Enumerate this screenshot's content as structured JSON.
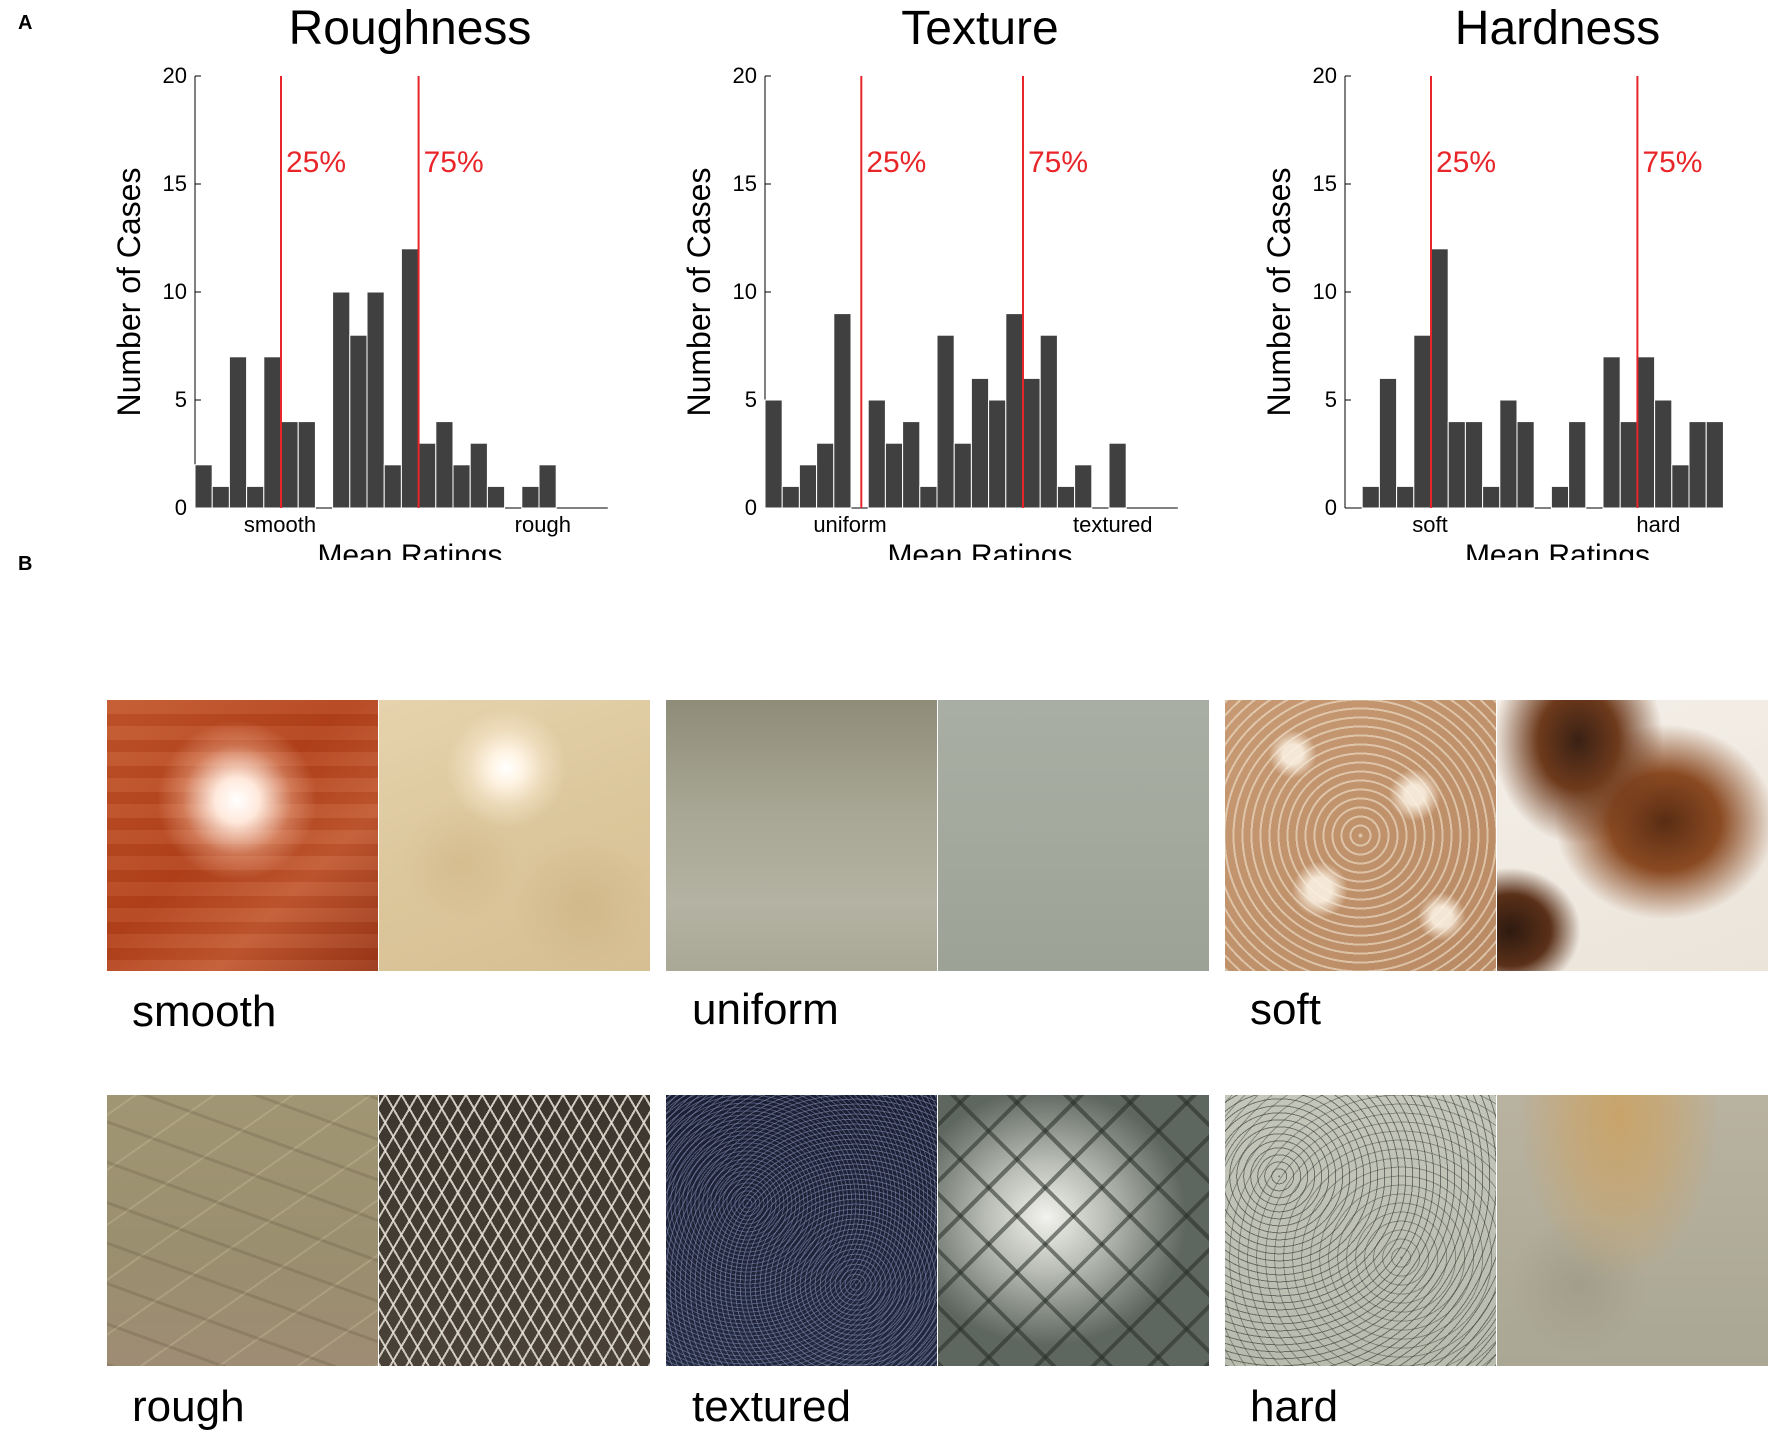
{
  "panels": {
    "a": "A",
    "b": "B"
  },
  "chart_data": [
    {
      "type": "bar",
      "title": "Roughness",
      "xlabel": "Mean Ratings",
      "ylabel": "Number of Cases",
      "ylim": [
        0,
        20
      ],
      "yticks": [
        0,
        5,
        10,
        15,
        20
      ],
      "x_end_labels": [
        "smooth",
        "rough"
      ],
      "bar_color": "#404040",
      "values": [
        2,
        1,
        7,
        1,
        7,
        4,
        4,
        0,
        10,
        8,
        10,
        2,
        12,
        3,
        4,
        2,
        3,
        1,
        0,
        1,
        2,
        0,
        0,
        0
      ],
      "percentiles": [
        {
          "label": "25%",
          "bin": 5
        },
        {
          "label": "75%",
          "bin": 13
        }
      ],
      "percentile_color": "#e8262a"
    },
    {
      "type": "bar",
      "title": "Texture",
      "xlabel": "Mean Ratings",
      "ylabel": "Number of Cases",
      "ylim": [
        0,
        20
      ],
      "yticks": [
        0,
        5,
        10,
        15,
        20
      ],
      "x_end_labels": [
        "uniform",
        "textured"
      ],
      "bar_color": "#404040",
      "values": [
        5,
        1,
        2,
        3,
        9,
        0,
        5,
        3,
        4,
        1,
        8,
        3,
        6,
        5,
        9,
        6,
        8,
        1,
        2,
        0,
        3,
        0,
        0,
        0
      ],
      "percentiles": [
        {
          "label": "25%",
          "bin": 5.6
        },
        {
          "label": "75%",
          "bin": 15
        }
      ],
      "percentile_color": "#e8262a"
    },
    {
      "type": "bar",
      "title": "Hardness",
      "xlabel": "Mean Ratings",
      "ylabel": "Number of Cases",
      "ylim": [
        0,
        20
      ],
      "yticks": [
        0,
        5,
        10,
        15,
        20
      ],
      "x_end_labels": [
        "soft",
        "hard"
      ],
      "bar_color": "#404040",
      "values": [
        0,
        1,
        6,
        1,
        8,
        12,
        4,
        4,
        1,
        5,
        4,
        0,
        1,
        4,
        0,
        7,
        4,
        7,
        5,
        2,
        4,
        4
      ],
      "percentiles": [
        {
          "label": "25%",
          "bin": 5
        },
        {
          "label": "75%",
          "bin": 17
        }
      ],
      "percentile_color": "#e8262a"
    }
  ],
  "materials": [
    {
      "label": "smooth"
    },
    {
      "label": "uniform"
    },
    {
      "label": "soft"
    },
    {
      "label": "rough"
    },
    {
      "label": "textured"
    },
    {
      "label": "hard"
    }
  ]
}
